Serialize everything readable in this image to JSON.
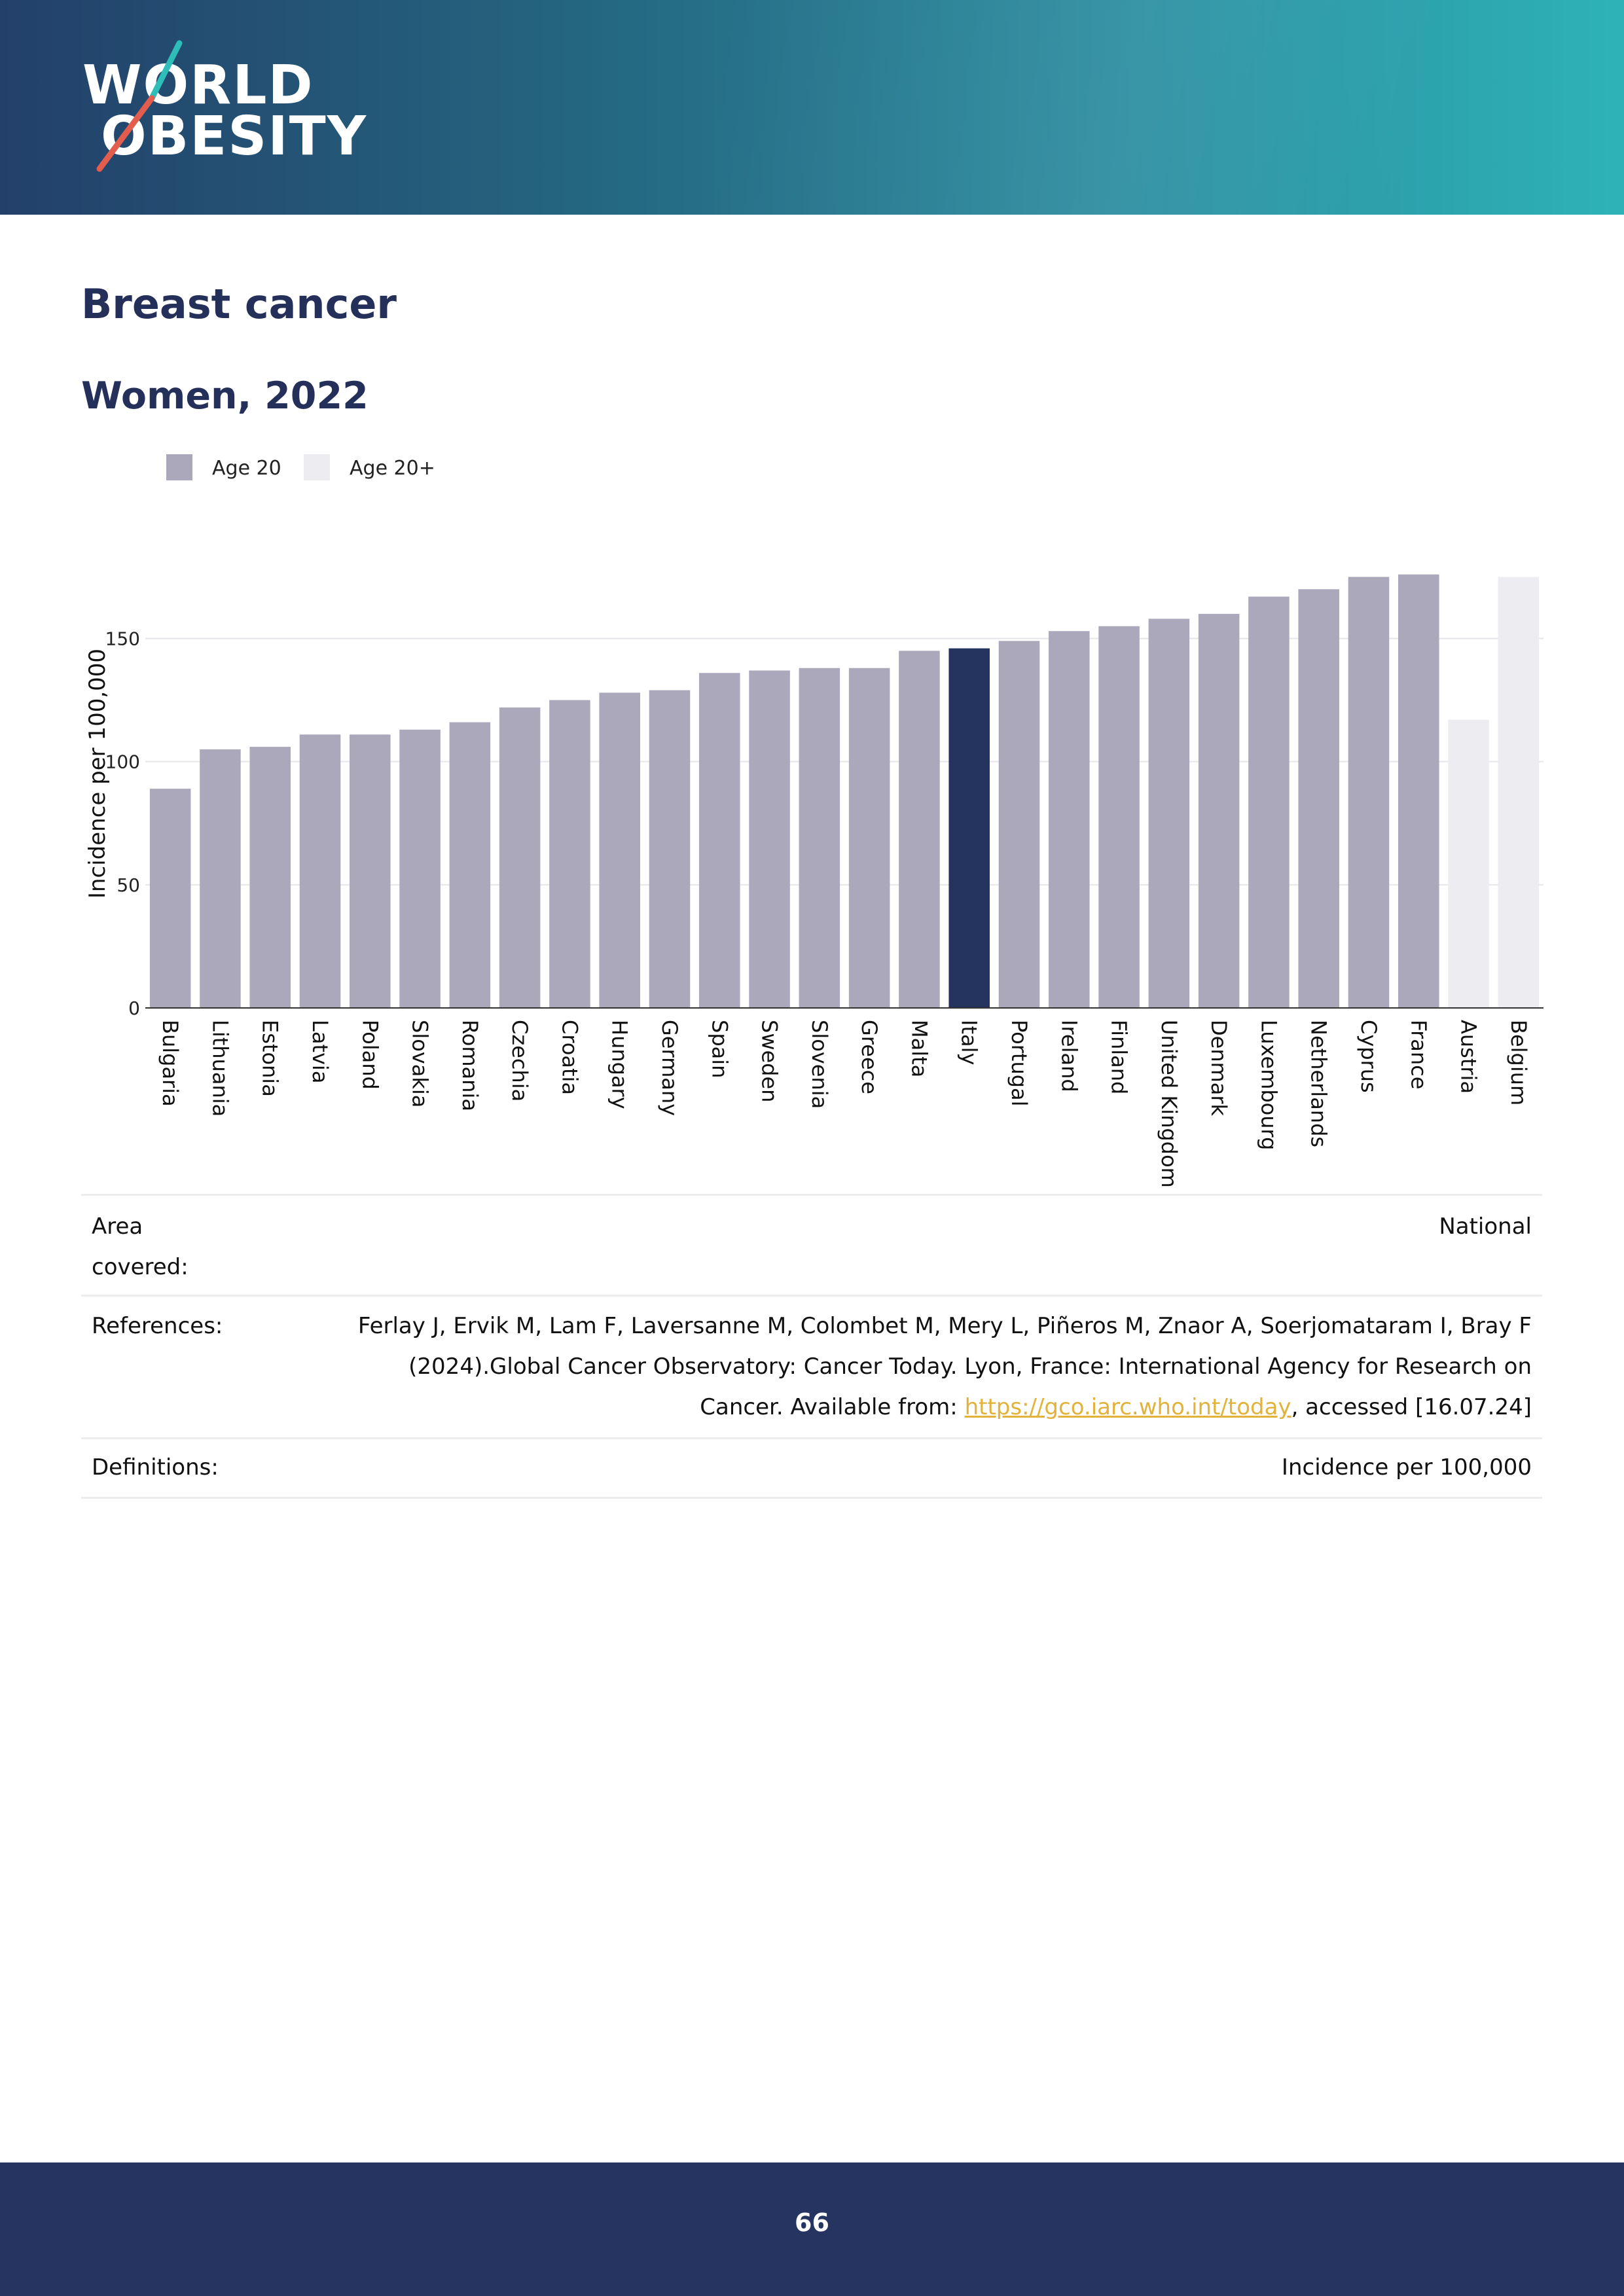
{
  "header": {
    "logo": {
      "line1": "WORLD",
      "line2": "OBESITY"
    }
  },
  "document": {
    "title": "Breast cancer",
    "subtitle": "Women, 2022"
  },
  "legend": {
    "items": [
      {
        "label": "Age 20",
        "color": "#aba8bc"
      },
      {
        "label": "Age 20+",
        "color": "#ededf1"
      }
    ]
  },
  "chart_data": {
    "type": "bar",
    "title": "Women, 2022",
    "xlabel": "",
    "ylabel": "Incidence per 100,000",
    "ylim": [
      0,
      190
    ],
    "yticks": [
      0,
      50,
      100,
      150
    ],
    "grid": true,
    "legend_position": "top-left",
    "highlight_color": "#25345f",
    "bars": [
      {
        "country": "Bulgaria",
        "value": 89,
        "series": "Age 20"
      },
      {
        "country": "Lithuania",
        "value": 105,
        "series": "Age 20"
      },
      {
        "country": "Estonia",
        "value": 106,
        "series": "Age 20"
      },
      {
        "country": "Latvia",
        "value": 111,
        "series": "Age 20"
      },
      {
        "country": "Poland",
        "value": 111,
        "series": "Age 20"
      },
      {
        "country": "Slovakia",
        "value": 113,
        "series": "Age 20"
      },
      {
        "country": "Romania",
        "value": 116,
        "series": "Age 20"
      },
      {
        "country": "Czechia",
        "value": 122,
        "series": "Age 20"
      },
      {
        "country": "Croatia",
        "value": 125,
        "series": "Age 20"
      },
      {
        "country": "Hungary",
        "value": 128,
        "series": "Age 20"
      },
      {
        "country": "Germany",
        "value": 129,
        "series": "Age 20"
      },
      {
        "country": "Spain",
        "value": 136,
        "series": "Age 20"
      },
      {
        "country": "Sweden",
        "value": 137,
        "series": "Age 20"
      },
      {
        "country": "Slovenia",
        "value": 138,
        "series": "Age 20"
      },
      {
        "country": "Greece",
        "value": 138,
        "series": "Age 20"
      },
      {
        "country": "Malta",
        "value": 145,
        "series": "Age 20"
      },
      {
        "country": "Italy",
        "value": 146,
        "series": "Age 20",
        "highlight": true
      },
      {
        "country": "Portugal",
        "value": 149,
        "series": "Age 20"
      },
      {
        "country": "Ireland",
        "value": 153,
        "series": "Age 20"
      },
      {
        "country": "Finland",
        "value": 155,
        "series": "Age 20"
      },
      {
        "country": "United Kingdom",
        "value": 158,
        "series": "Age 20"
      },
      {
        "country": "Denmark",
        "value": 160,
        "series": "Age 20"
      },
      {
        "country": "Luxembourg",
        "value": 167,
        "series": "Age 20"
      },
      {
        "country": "Netherlands",
        "value": 170,
        "series": "Age 20"
      },
      {
        "country": "Cyprus",
        "value": 175,
        "series": "Age 20"
      },
      {
        "country": "France",
        "value": 176,
        "series": "Age 20"
      },
      {
        "country": "Austria",
        "value": 117,
        "series": "Age 20+"
      },
      {
        "country": "Belgium",
        "value": 175,
        "series": "Age 20+"
      }
    ]
  },
  "info": {
    "area_label": "Area covered:",
    "area_value": "National",
    "references_label": "References:",
    "references_text": "Ferlay J, Ervik M, Lam F, Laversanne M, Colombet M, Mery L, Piñeros M, Znaor A, Soerjomataram I, Bray F (2024).Global Cancer Observatory: Cancer Today. Lyon, France: International Agency for Research on Cancer. Available from:",
    "references_link": "https://gco.iarc.who.int/today",
    "references_suffix": ", accessed [16.07.24]",
    "definitions_label": "Definitions:",
    "definitions_value": "Incidence per 100,000"
  },
  "footer": {
    "page_number": "66"
  }
}
